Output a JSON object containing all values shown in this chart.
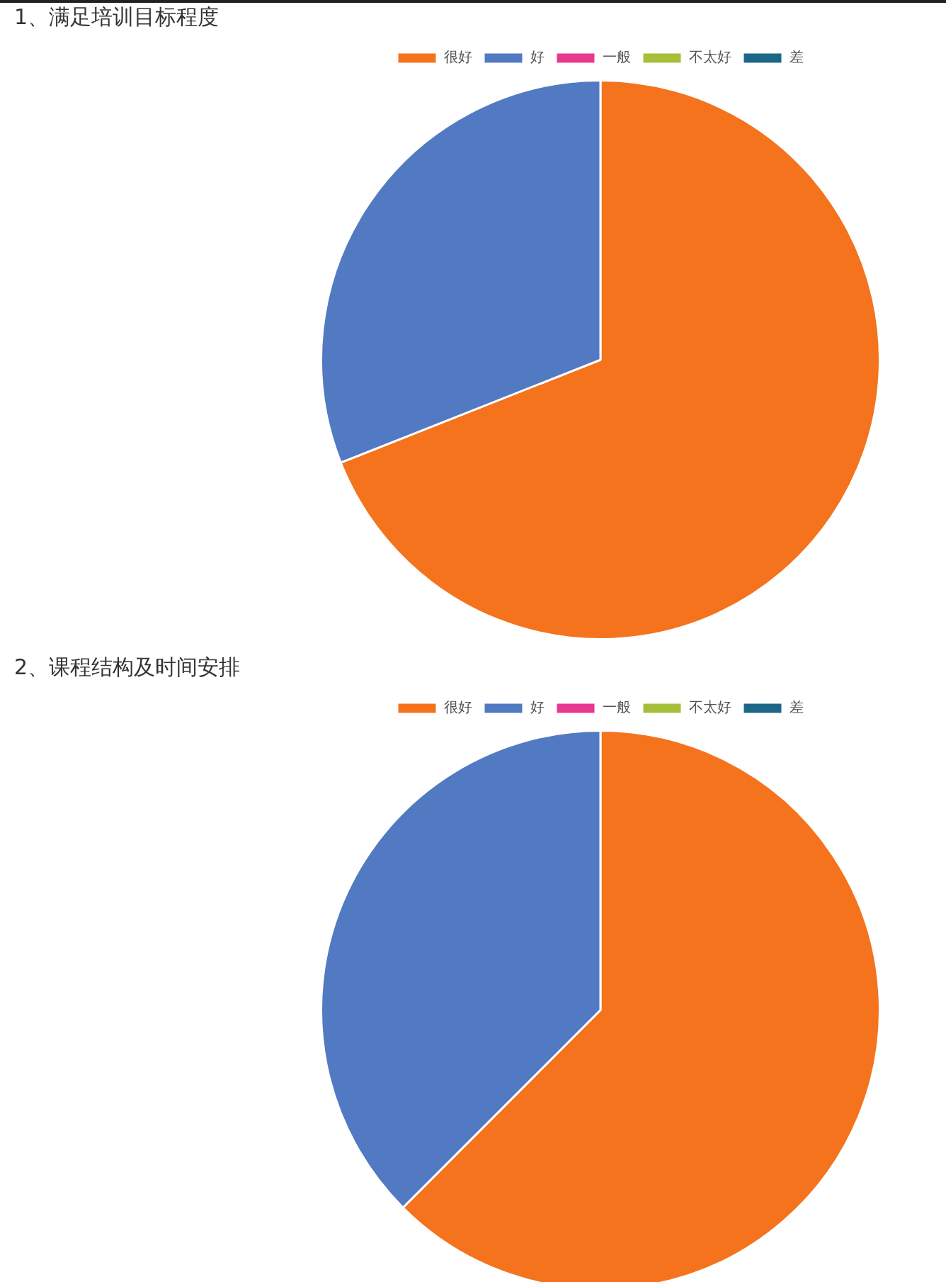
{
  "chart_data": [
    {
      "type": "pie",
      "title": "1、满足培训目标程度",
      "categories": [
        "很好",
        "好",
        "一般",
        "不太好",
        "差"
      ],
      "values": [
        69,
        31,
        0,
        0,
        0
      ],
      "colors": [
        "#f4731c",
        "#527ac2",
        "#e8388f",
        "#a5bf3a",
        "#1c6788"
      ],
      "legend": "top"
    },
    {
      "type": "pie",
      "title": "2、课程结构及时间安排",
      "categories": [
        "很好",
        "好",
        "一般",
        "不太好",
        "差"
      ],
      "values": [
        62.5,
        37.5,
        0,
        0,
        0
      ],
      "colors": [
        "#f4731c",
        "#527ac2",
        "#e8388f",
        "#a5bf3a",
        "#1c6788"
      ],
      "legend": "top"
    }
  ]
}
